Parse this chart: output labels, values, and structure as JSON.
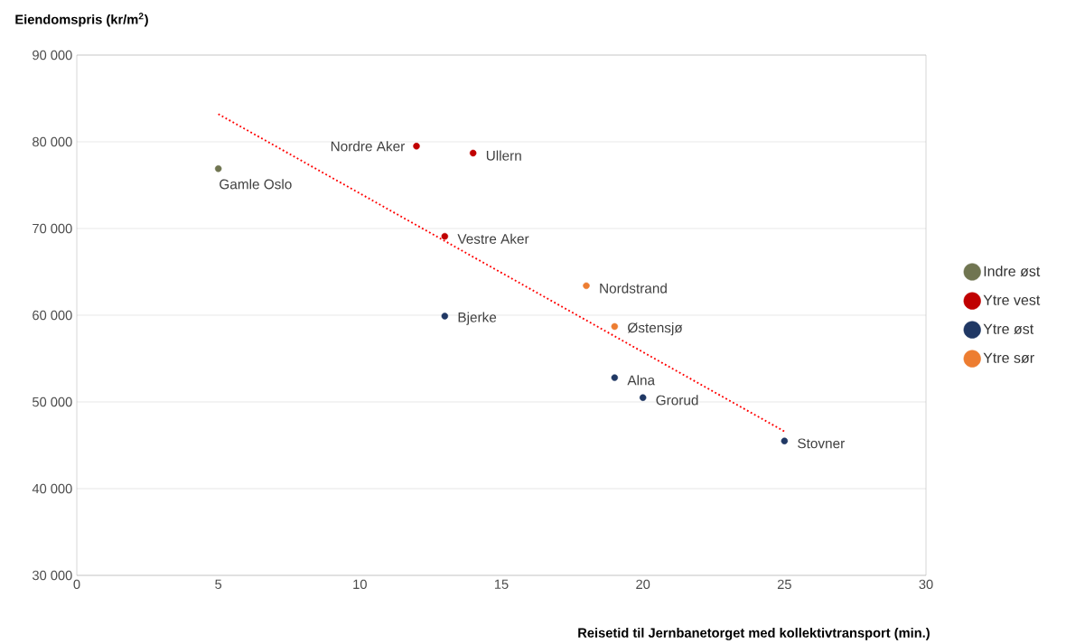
{
  "chart_data": {
    "type": "scatter",
    "xlabel": "Reisetid til Jernbanetorget med kollektivtransport (min.)",
    "ylabel": "Eiendomspris (kr/m$^{2}$)",
    "xlim": [
      0,
      30
    ],
    "ylim": [
      30000,
      90000
    ],
    "xticks": [
      0,
      5,
      10,
      15,
      20,
      25,
      30
    ],
    "yticks": [
      {
        "value": 30000,
        "label": "30 000"
      },
      {
        "value": 40000,
        "label": "40 000"
      },
      {
        "value": 50000,
        "label": "50 000"
      },
      {
        "value": 60000,
        "label": "60 000"
      },
      {
        "value": 70000,
        "label": "70 000"
      },
      {
        "value": 80000,
        "label": "80 000"
      },
      {
        "value": 90000,
        "label": "90 000"
      }
    ],
    "grid": "y",
    "legend": "right",
    "series": [
      {
        "name": "Indre øst",
        "color": "#707551",
        "marker": "circle",
        "x": [
          5
        ],
        "values": [
          76900
        ]
      },
      {
        "name": "Ytre vest",
        "color": "#c00000",
        "marker": "circle",
        "x": [
          12,
          14,
          13
        ],
        "values": [
          79500,
          78700,
          69100
        ]
      },
      {
        "name": "Ytre øst",
        "color": "#203864",
        "marker": "circle",
        "x": [
          13,
          19,
          20,
          25
        ],
        "values": [
          59900,
          52800,
          50500,
          45500
        ]
      },
      {
        "name": "Ytre sør",
        "color": "#ed7d31",
        "marker": "circle",
        "x": [
          18,
          19
        ],
        "values": [
          63400,
          58700
        ]
      },
      {
        "type": "line",
        "color": "#ff0000",
        "line_style": "dotted",
        "marker": "none",
        "x": [
          5,
          25
        ],
        "values": [
          83200,
          46600
        ]
      }
    ],
    "annotations": [
      {
        "text": "Gamle Oslo",
        "x": 5,
        "y": 76900
      },
      {
        "text": "Nordre Aker",
        "x": 12,
        "y": 79500
      },
      {
        "text": "Ullern",
        "x": 14,
        "y": 78700
      },
      {
        "text": "Vestre Aker",
        "x": 13,
        "y": 69100
      },
      {
        "text": "Bjerke",
        "x": 13,
        "y": 59900
      },
      {
        "text": "Nordstrand",
        "x": 18,
        "y": 63400
      },
      {
        "text": "Østensjø",
        "x": 19,
        "y": 58700
      },
      {
        "text": "Alna",
        "x": 19,
        "y": 52800
      },
      {
        "text": "Grorud",
        "x": 20,
        "y": 50500
      },
      {
        "text": "Stovner",
        "x": 25,
        "y": 45500
      }
    ]
  }
}
